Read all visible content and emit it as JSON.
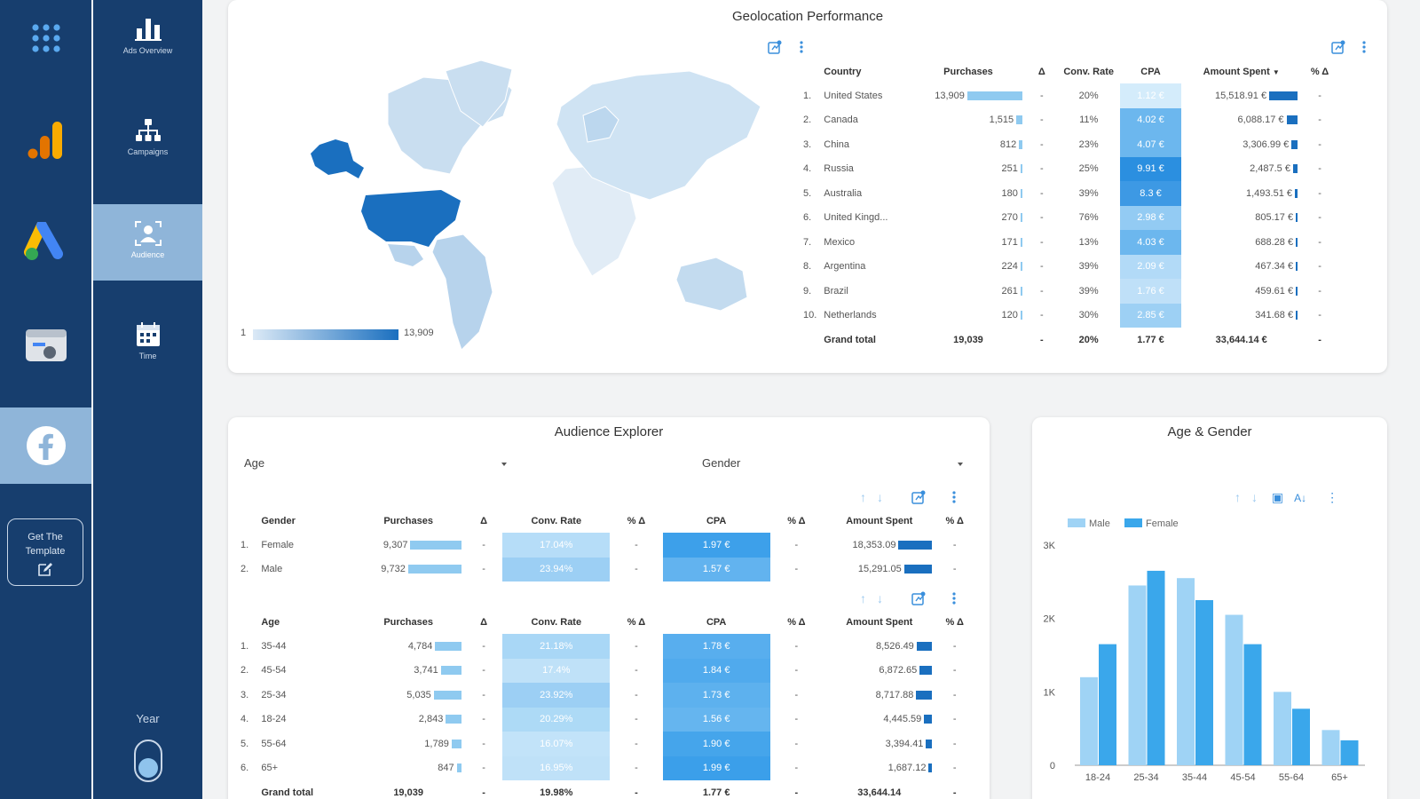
{
  "nav": {
    "rail": [
      "apps-grid",
      "google-analytics",
      "google-ads",
      "search-console",
      "facebook"
    ],
    "get_template": "Get The Template",
    "menu": [
      {
        "label": "Ads Overview",
        "icon": "bar-chart-icon"
      },
      {
        "label": "Campaigns",
        "icon": "hierarchy-icon"
      },
      {
        "label": "Audience",
        "icon": "audience-icon"
      },
      {
        "label": "Time",
        "icon": "calendar-icon"
      }
    ],
    "active_menu": "Audience",
    "year_label": "Year"
  },
  "colors": {
    "sidebar": "#173e6e",
    "active": "#8fb5d9",
    "bar_light": "#8fcaf0",
    "bar_dark": "#1a6fbf",
    "male": "#9fd3f5",
    "female": "#3aa7eb"
  },
  "geo": {
    "title": "Geolocation Performance",
    "legend_min": "1",
    "legend_max": "13,909",
    "columns": [
      "Country",
      "Purchases",
      "Δ",
      "Conv. Rate",
      "CPA",
      "Amount Spent",
      "% Δ"
    ],
    "sort_indicator": "▼",
    "rows": [
      {
        "rank": "1.",
        "country": "United States",
        "purchases": "13,909",
        "pv": 13909,
        "delta": "-",
        "conv": "20%",
        "cpa": "1.12 €",
        "cpa_color": "#d4ecfb",
        "spent": "15,518.91 €",
        "sv": 15518.91,
        "pdelta": "-"
      },
      {
        "rank": "2.",
        "country": "Canada",
        "purchases": "1,515",
        "pv": 1515,
        "delta": "-",
        "conv": "11%",
        "cpa": "4.02 €",
        "cpa_color": "#6cb7ee",
        "spent": "6,088.17 €",
        "sv": 6088.17,
        "pdelta": "-"
      },
      {
        "rank": "3.",
        "country": "China",
        "purchases": "812",
        "pv": 812,
        "delta": "-",
        "conv": "23%",
        "cpa": "4.07 €",
        "cpa_color": "#6cb7ee",
        "spent": "3,306.99 €",
        "sv": 3306.99,
        "pdelta": "-"
      },
      {
        "rank": "4.",
        "country": "Russia",
        "purchases": "251",
        "pv": 251,
        "delta": "-",
        "conv": "25%",
        "cpa": "9.91 €",
        "cpa_color": "#2b8fe0",
        "spent": "2,487.5 €",
        "sv": 2487.5,
        "pdelta": "-"
      },
      {
        "rank": "5.",
        "country": "Australia",
        "purchases": "180",
        "pv": 180,
        "delta": "-",
        "conv": "39%",
        "cpa": "8.3 €",
        "cpa_color": "#3d99e4",
        "spent": "1,493.51 €",
        "sv": 1493.51,
        "pdelta": "-"
      },
      {
        "rank": "6.",
        "country": "United Kingd...",
        "purchases": "270",
        "pv": 270,
        "delta": "-",
        "conv": "76%",
        "cpa": "2.98 €",
        "cpa_color": "#93cbf3",
        "spent": "805.17 €",
        "sv": 805.17,
        "pdelta": "-"
      },
      {
        "rank": "7.",
        "country": "Mexico",
        "purchases": "171",
        "pv": 171,
        "delta": "-",
        "conv": "13%",
        "cpa": "4.03 €",
        "cpa_color": "#6cb7ee",
        "spent": "688.28 €",
        "sv": 688.28,
        "pdelta": "-"
      },
      {
        "rank": "8.",
        "country": "Argentina",
        "purchases": "224",
        "pv": 224,
        "delta": "-",
        "conv": "39%",
        "cpa": "2.09 €",
        "cpa_color": "#b2daf7",
        "spent": "467.34 €",
        "sv": 467.34,
        "pdelta": "-"
      },
      {
        "rank": "9.",
        "country": "Brazil",
        "purchases": "261",
        "pv": 261,
        "delta": "-",
        "conv": "39%",
        "cpa": "1.76 €",
        "cpa_color": "#bfe0f8",
        "spent": "459.61 €",
        "sv": 459.61,
        "pdelta": "-"
      },
      {
        "rank": "10.",
        "country": "Netherlands",
        "purchases": "120",
        "pv": 120,
        "delta": "-",
        "conv": "30%",
        "cpa": "2.85 €",
        "cpa_color": "#9dd0f4",
        "spent": "341.68 €",
        "sv": 341.68,
        "pdelta": "-"
      }
    ],
    "total": {
      "label": "Grand total",
      "purchases": "19,039",
      "delta": "-",
      "conv": "20%",
      "cpa": "1.77 €",
      "spent": "33,644.14 €",
      "pdelta": "-"
    }
  },
  "audience": {
    "title": "Audience Explorer",
    "filter_age": "Age",
    "filter_gender": "Gender",
    "gender_columns": [
      "Gender",
      "Purchases",
      "Δ",
      "Conv. Rate",
      "% Δ",
      "CPA",
      "% Δ",
      "Amount Spent",
      "% Δ"
    ],
    "gender_rows": [
      {
        "rank": "1.",
        "label": "Female",
        "purchases": "9,307",
        "pv": 9307,
        "delta": "-",
        "conv": "17.04%",
        "conv_color": "#b6ddf8",
        "cd": "-",
        "cpa": "1.97 €",
        "cpa_color": "#3da0ea",
        "cpd": "-",
        "spent": "18,353.09",
        "sv": 18353.09,
        "sd": "-"
      },
      {
        "rank": "2.",
        "label": "Male",
        "purchases": "9,732",
        "pv": 9732,
        "delta": "-",
        "conv": "23.94%",
        "conv_color": "#9ccff4",
        "cd": "-",
        "cpa": "1.57 €",
        "cpa_color": "#62b3ef",
        "cpd": "-",
        "spent": "15,291.05",
        "sv": 15291.05,
        "sd": "-"
      }
    ],
    "age_columns": [
      "Age",
      "Purchases",
      "Δ",
      "Conv. Rate",
      "% Δ",
      "CPA",
      "% Δ",
      "Amount Spent",
      "% Δ"
    ],
    "age_rows": [
      {
        "rank": "1.",
        "label": "35-44",
        "purchases": "4,784",
        "pv": 4784,
        "delta": "-",
        "conv": "21.18%",
        "conv_color": "#a9d7f6",
        "cd": "-",
        "cpa": "1.78 €",
        "cpa_color": "#58aeee",
        "cpd": "-",
        "spent": "8,526.49",
        "sv": 8526.49,
        "sd": "-"
      },
      {
        "rank": "2.",
        "label": "45-54",
        "purchases": "3,741",
        "pv": 3741,
        "delta": "-",
        "conv": "17.4%",
        "conv_color": "#bfe1f8",
        "cd": "-",
        "cpa": "1.84 €",
        "cpa_color": "#50aaed",
        "cpd": "-",
        "spent": "6,872.65",
        "sv": 6872.65,
        "sd": "-"
      },
      {
        "rank": "3.",
        "label": "25-34",
        "purchases": "5,035",
        "pv": 5035,
        "delta": "-",
        "conv": "23.92%",
        "conv_color": "#9ccff4",
        "cd": "-",
        "cpa": "1.73 €",
        "cpa_color": "#5db1ee",
        "cpd": "-",
        "spent": "8,717.88",
        "sv": 8717.88,
        "sd": "-"
      },
      {
        "rank": "4.",
        "label": "18-24",
        "purchases": "2,843",
        "pv": 2843,
        "delta": "-",
        "conv": "20.29%",
        "conv_color": "#addaf6",
        "cd": "-",
        "cpa": "1.56 €",
        "cpa_color": "#65b5ef",
        "cpd": "-",
        "spent": "4,445.59",
        "sv": 4445.59,
        "sd": "-"
      },
      {
        "rank": "5.",
        "label": "55-64",
        "purchases": "1,789",
        "pv": 1789,
        "delta": "-",
        "conv": "16.07%",
        "conv_color": "#c2e3f9",
        "cd": "-",
        "cpa": "1.90 €",
        "cpa_color": "#45a5eb",
        "cpd": "-",
        "spent": "3,394.41",
        "sv": 3394.41,
        "sd": "-"
      },
      {
        "rank": "6.",
        "label": "65+",
        "purchases": "847",
        "pv": 847,
        "delta": "-",
        "conv": "16.95%",
        "conv_color": "#bfe1f8",
        "cd": "-",
        "cpa": "1.99 €",
        "cpa_color": "#3b9fea",
        "cpd": "-",
        "spent": "1,687.12",
        "sv": 1687.12,
        "sd": "-"
      }
    ],
    "total": {
      "label": "Grand total",
      "purchases": "19,039",
      "delta": "-",
      "conv": "19.98%",
      "cd": "-",
      "cpa": "1.77 €",
      "cpd": "-",
      "spent": "33,644.14",
      "sd": "-"
    }
  },
  "chart_data": {
    "type": "bar",
    "title": "Age & Gender",
    "categories": [
      "18-24",
      "25-34",
      "35-44",
      "45-54",
      "55-64",
      "65+"
    ],
    "series": [
      {
        "name": "Male",
        "values": [
          1200,
          2450,
          2550,
          2050,
          1000,
          480
        ]
      },
      {
        "name": "Female",
        "values": [
          1650,
          2650,
          2250,
          1650,
          770,
          340
        ]
      }
    ],
    "yticks": [
      "0",
      "1K",
      "2K",
      "3K"
    ],
    "ylim": [
      0,
      3000
    ],
    "legend": "top-left"
  }
}
